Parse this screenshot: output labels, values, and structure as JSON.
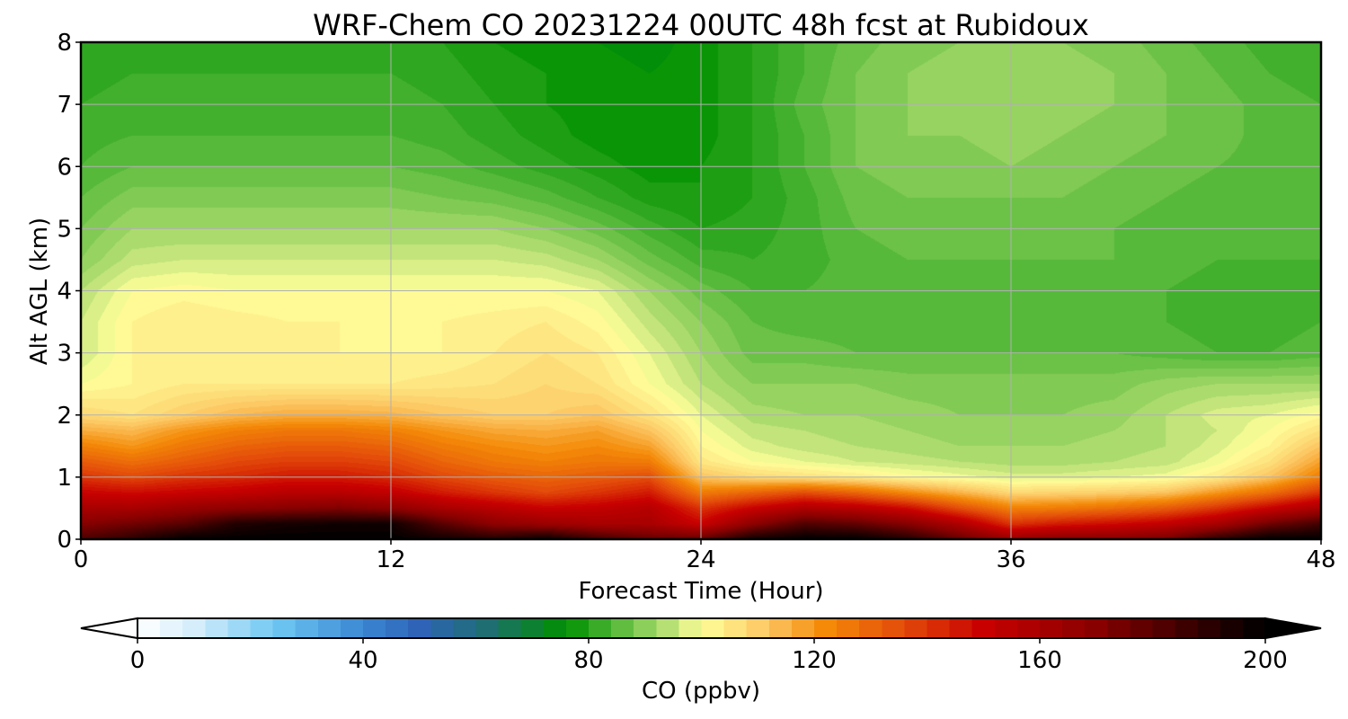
{
  "chart_data": {
    "type": "heatmap",
    "title": "WRF-Chem CO  20231224 00UTC 48h fcst at Rubidoux",
    "xlabel": "Forecast Time (Hour)",
    "ylabel": "Alt AGL (km)",
    "xlim": [
      0,
      48
    ],
    "ylim": [
      0,
      8
    ],
    "xticks": [
      0,
      12,
      24,
      36,
      48
    ],
    "yticks": [
      0,
      1,
      2,
      3,
      4,
      5,
      6,
      7,
      8
    ],
    "grid": true,
    "x_hours": [
      0,
      2,
      4,
      6,
      8,
      10,
      12,
      14,
      16,
      18,
      20,
      22,
      24,
      26,
      28,
      30,
      32,
      34,
      36,
      38,
      40,
      42,
      44,
      46,
      48
    ],
    "y_km": [
      0,
      0.25,
      0.5,
      0.75,
      1.0,
      1.25,
      1.5,
      1.75,
      2.0,
      2.5,
      3.0,
      3.5,
      4.0,
      4.5,
      5.0,
      5.5,
      6.0,
      6.5,
      7.0,
      7.5,
      8.0
    ],
    "values_ppbv": [
      [
        182,
        190,
        200,
        200,
        200,
        200,
        200,
        196,
        192,
        198,
        186,
        178,
        178,
        196,
        200,
        200,
        192,
        178,
        165,
        170,
        170,
        174,
        190,
        200,
        200
      ],
      [
        170,
        175,
        180,
        192,
        195,
        196,
        196,
        180,
        168,
        164,
        160,
        160,
        150,
        168,
        182,
        178,
        170,
        158,
        140,
        145,
        148,
        152,
        160,
        175,
        185
      ],
      [
        160,
        160,
        165,
        168,
        170,
        172,
        168,
        160,
        155,
        150,
        152,
        156,
        140,
        150,
        158,
        155,
        148,
        135,
        124,
        125,
        128,
        132,
        140,
        150,
        160
      ],
      [
        150,
        148,
        150,
        152,
        155,
        155,
        152,
        145,
        140,
        136,
        140,
        145,
        125,
        130,
        135,
        130,
        122,
        115,
        108,
        109,
        110,
        112,
        120,
        128,
        140
      ],
      [
        140,
        136,
        140,
        142,
        145,
        145,
        142,
        136,
        132,
        130,
        132,
        135,
        112,
        108,
        106,
        104,
        101,
        99,
        97,
        97,
        98,
        99,
        104,
        112,
        125
      ],
      [
        132,
        128,
        132,
        136,
        138,
        138,
        136,
        130,
        126,
        124,
        126,
        125,
        105,
        100,
        98,
        96,
        95,
        94,
        93,
        93,
        94,
        95,
        99,
        106,
        118
      ],
      [
        124,
        120,
        126,
        130,
        132,
        132,
        130,
        125,
        122,
        120,
        122,
        118,
        102,
        97,
        95,
        94,
        93,
        92,
        92,
        92,
        93,
        94,
        97,
        102,
        112
      ],
      [
        116,
        114,
        120,
        124,
        126,
        126,
        124,
        120,
        117,
        116,
        118,
        112,
        100,
        95,
        94,
        93,
        92,
        91,
        91,
        91,
        92,
        94,
        96,
        100,
        106
      ],
      [
        108,
        106,
        110,
        114,
        116,
        116,
        115,
        112,
        110,
        110,
        112,
        106,
        98,
        93,
        92,
        92,
        91,
        90,
        90,
        90,
        91,
        94,
        97,
        98,
        101
      ],
      [
        100,
        102,
        104,
        104,
        104,
        104,
        104,
        105,
        106,
        108,
        106,
        100,
        94,
        90,
        90,
        90,
        89,
        89,
        89,
        89,
        89,
        91,
        92,
        92,
        92
      ],
      [
        96,
        102,
        104,
        103,
        102,
        102,
        102,
        102,
        104,
        106,
        104,
        98,
        92,
        87,
        87,
        86,
        86,
        86,
        86,
        86,
        86,
        85,
        84,
        84,
        85
      ],
      [
        96,
        102,
        104,
        103,
        102,
        102,
        101,
        102,
        103,
        104,
        101,
        95,
        90,
        86,
        85,
        85,
        85,
        85,
        85,
        85,
        85,
        84,
        83,
        83,
        84
      ],
      [
        94,
        100,
        101,
        100,
        100,
        100,
        100,
        100,
        100,
        100,
        98,
        92,
        87,
        84,
        84,
        85,
        84,
        85,
        85,
        85,
        85,
        84,
        83,
        83,
        84
      ],
      [
        90,
        95,
        96,
        96,
        96,
        96,
        96,
        96,
        96,
        95,
        92,
        87,
        83,
        82,
        83,
        85,
        86,
        86,
        86,
        86,
        86,
        85,
        84,
        84,
        84
      ],
      [
        88,
        92,
        92,
        92,
        92,
        92,
        92,
        92,
        92,
        90,
        87,
        83,
        80,
        81,
        83,
        86,
        87,
        87,
        87,
        87,
        86,
        85,
        84,
        84,
        84
      ],
      [
        86,
        89,
        89,
        89,
        89,
        89,
        89,
        88,
        87,
        85,
        82,
        79,
        78,
        80,
        83,
        87,
        88,
        88,
        88,
        88,
        87,
        86,
        85,
        84,
        84
      ],
      [
        84,
        86,
        86,
        86,
        86,
        86,
        86,
        85,
        83,
        81,
        79,
        77,
        78,
        80,
        84,
        88,
        89,
        89,
        90,
        89,
        88,
        87,
        86,
        85,
        84
      ],
      [
        83,
        84,
        84,
        84,
        84,
        84,
        84,
        83,
        81,
        79,
        77,
        76,
        77,
        80,
        84,
        88,
        90,
        90,
        91,
        90,
        89,
        88,
        87,
        85,
        84
      ],
      [
        82,
        83,
        83,
        83,
        83,
        83,
        83,
        82,
        80,
        78,
        77,
        76,
        77,
        80,
        85,
        88,
        90,
        91,
        92,
        91,
        90,
        88,
        87,
        85,
        84
      ],
      [
        81,
        82,
        82,
        82,
        82,
        82,
        82,
        81,
        79,
        78,
        77,
        76,
        77,
        80,
        84,
        88,
        90,
        91,
        92,
        91,
        90,
        88,
        86,
        84,
        83
      ],
      [
        80,
        81,
        81,
        81,
        81,
        81,
        81,
        80,
        78,
        77,
        76,
        75,
        77,
        80,
        84,
        87,
        89,
        90,
        91,
        90,
        89,
        87,
        85,
        83,
        82
      ]
    ],
    "colorbar": {
      "label": "CO  (ppbv)",
      "ticks": [
        0,
        40,
        80,
        120,
        160,
        200
      ],
      "vmin": 0,
      "vmax": 200,
      "extend": "both",
      "colors": [
        {
          "v": 0,
          "c": "#ffffff"
        },
        {
          "v": 10,
          "c": "#d6eefb"
        },
        {
          "v": 25,
          "c": "#6cc6f2"
        },
        {
          "v": 40,
          "c": "#3a86d2"
        },
        {
          "v": 50,
          "c": "#2f63b8"
        },
        {
          "v": 62,
          "c": "#1e6e72"
        },
        {
          "v": 76,
          "c": "#009000"
        },
        {
          "v": 85,
          "c": "#56b93a"
        },
        {
          "v": 95,
          "c": "#c2e47a"
        },
        {
          "v": 100,
          "c": "#ffff9a"
        },
        {
          "v": 112,
          "c": "#fcc460"
        },
        {
          "v": 122,
          "c": "#f48a08"
        },
        {
          "v": 135,
          "c": "#e44e0a"
        },
        {
          "v": 150,
          "c": "#c80000"
        },
        {
          "v": 170,
          "c": "#880000"
        },
        {
          "v": 190,
          "c": "#2a0000"
        },
        {
          "v": 200,
          "c": "#000000"
        }
      ]
    }
  }
}
